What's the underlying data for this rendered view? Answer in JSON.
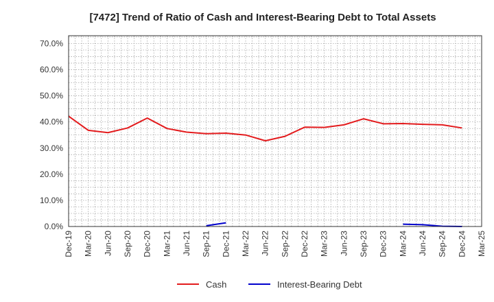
{
  "chart_data": {
    "type": "line",
    "title": "[7472]  Trend of Ratio of Cash and Interest-Bearing Debt to Total Assets",
    "xlabel": "",
    "ylabel": "",
    "x": [
      "Dec-19",
      "Mar-20",
      "Jun-20",
      "Sep-20",
      "Dec-20",
      "Mar-21",
      "Jun-21",
      "Sep-21",
      "Dec-21",
      "Mar-22",
      "Jun-22",
      "Sep-22",
      "Dec-22",
      "Mar-23",
      "Jun-23",
      "Sep-23",
      "Dec-23",
      "Mar-24",
      "Jun-24",
      "Sep-24",
      "Dec-24",
      "Mar-25"
    ],
    "ylim": [
      0,
      73
    ],
    "yticks": [
      0,
      10,
      20,
      30,
      40,
      50,
      60,
      70
    ],
    "ytick_labels": [
      "0.0%",
      "10.0%",
      "20.0%",
      "30.0%",
      "40.0%",
      "50.0%",
      "60.0%",
      "70.0%"
    ],
    "grid": true,
    "legend_position": "bottom-center",
    "series": [
      {
        "name": "Cash",
        "color": "#e31a1c",
        "values": [
          42.2,
          36.8,
          35.9,
          37.7,
          41.5,
          37.5,
          36.1,
          35.5,
          35.7,
          35.0,
          32.8,
          34.5,
          38.0,
          37.9,
          38.9,
          41.2,
          39.3,
          39.4,
          39.1,
          38.9,
          37.7,
          null
        ]
      },
      {
        "name": "Interest-Bearing Debt",
        "color": "#0000cc",
        "values": [
          null,
          null,
          null,
          null,
          null,
          null,
          null,
          0.3,
          1.4,
          null,
          null,
          null,
          null,
          null,
          null,
          null,
          null,
          0.9,
          0.7,
          0.1,
          0.0,
          null
        ]
      }
    ]
  }
}
